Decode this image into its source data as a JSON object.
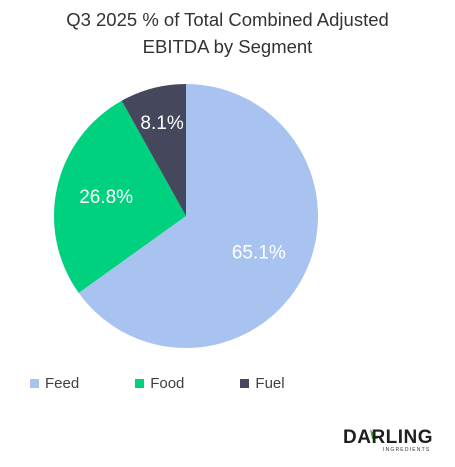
{
  "chart_data": {
    "type": "pie",
    "title": "Q3 2025 % of Total Combined Adjusted EBITDA by Segment",
    "title_lines": [
      "Q3 2025 % of Total Combined Adjusted",
      "EBITDA by Segment"
    ],
    "categories": [
      "Feed",
      "Food",
      "Fuel"
    ],
    "values": [
      65.1,
      26.8,
      8.1
    ],
    "labels": [
      "65.1%",
      "26.8%",
      "8.1%"
    ],
    "colors": [
      "#a9c3f1",
      "#00d17e",
      "#45485c"
    ],
    "label_color": "#ffffff",
    "legend": "bottom-left"
  },
  "logo": {
    "text": "DARLING",
    "subtext": "INGREDIENTS",
    "accent_color": "#3fa535"
  }
}
